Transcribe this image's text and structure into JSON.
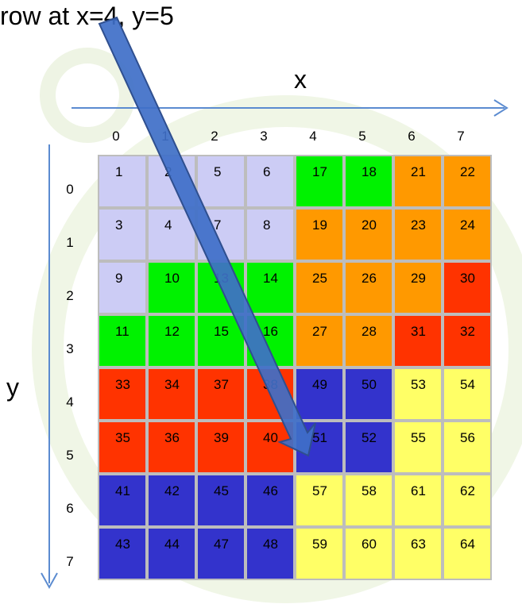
{
  "caption": "row at x=4, y=5",
  "x_axis_name": "x",
  "y_axis_name": "y",
  "x_ticks": [
    "0",
    "1",
    "2",
    "3",
    "4",
    "5",
    "6",
    "7"
  ],
  "y_ticks": [
    "0",
    "1",
    "2",
    "3",
    "4",
    "5",
    "6",
    "7"
  ],
  "colors": {
    "lavender": "#ccccf5",
    "green": "#00f200",
    "orange": "#ff9900",
    "red": "#ff3300",
    "blue": "#3333cc",
    "yellow": "#ffff66",
    "axis": "#5b8bd0",
    "arrow": "#3f6fc8",
    "arrow_edge": "#2f4f8f"
  },
  "grid": [
    [
      {
        "v": "1",
        "c": "lavender"
      },
      {
        "v": "2",
        "c": "lavender"
      },
      {
        "v": "5",
        "c": "lavender"
      },
      {
        "v": "6",
        "c": "lavender"
      },
      {
        "v": "17",
        "c": "green"
      },
      {
        "v": "18",
        "c": "green"
      },
      {
        "v": "21",
        "c": "orange"
      },
      {
        "v": "22",
        "c": "orange"
      }
    ],
    [
      {
        "v": "3",
        "c": "lavender"
      },
      {
        "v": "4",
        "c": "lavender"
      },
      {
        "v": "7",
        "c": "lavender"
      },
      {
        "v": "8",
        "c": "lavender"
      },
      {
        "v": "19",
        "c": "orange"
      },
      {
        "v": "20",
        "c": "orange"
      },
      {
        "v": "23",
        "c": "orange"
      },
      {
        "v": "24",
        "c": "orange"
      }
    ],
    [
      {
        "v": "9",
        "c": "lavender"
      },
      {
        "v": "10",
        "c": "green"
      },
      {
        "v": "13",
        "c": "green"
      },
      {
        "v": "14",
        "c": "green"
      },
      {
        "v": "25",
        "c": "orange"
      },
      {
        "v": "26",
        "c": "orange"
      },
      {
        "v": "29",
        "c": "orange"
      },
      {
        "v": "30",
        "c": "red"
      }
    ],
    [
      {
        "v": "11",
        "c": "green"
      },
      {
        "v": "12",
        "c": "green"
      },
      {
        "v": "15",
        "c": "green"
      },
      {
        "v": "16",
        "c": "green"
      },
      {
        "v": "27",
        "c": "orange"
      },
      {
        "v": "28",
        "c": "orange"
      },
      {
        "v": "31",
        "c": "red"
      },
      {
        "v": "32",
        "c": "red"
      }
    ],
    [
      {
        "v": "33",
        "c": "red"
      },
      {
        "v": "34",
        "c": "red"
      },
      {
        "v": "37",
        "c": "red"
      },
      {
        "v": "38",
        "c": "red"
      },
      {
        "v": "49",
        "c": "blue"
      },
      {
        "v": "50",
        "c": "blue"
      },
      {
        "v": "53",
        "c": "yellow"
      },
      {
        "v": "54",
        "c": "yellow"
      }
    ],
    [
      {
        "v": "35",
        "c": "red"
      },
      {
        "v": "36",
        "c": "red"
      },
      {
        "v": "39",
        "c": "red"
      },
      {
        "v": "40",
        "c": "red"
      },
      {
        "v": "51",
        "c": "blue"
      },
      {
        "v": "52",
        "c": "blue"
      },
      {
        "v": "55",
        "c": "yellow"
      },
      {
        "v": "56",
        "c": "yellow"
      }
    ],
    [
      {
        "v": "41",
        "c": "blue"
      },
      {
        "v": "42",
        "c": "blue"
      },
      {
        "v": "45",
        "c": "blue"
      },
      {
        "v": "46",
        "c": "blue"
      },
      {
        "v": "57",
        "c": "yellow"
      },
      {
        "v": "58",
        "c": "yellow"
      },
      {
        "v": "61",
        "c": "yellow"
      },
      {
        "v": "62",
        "c": "yellow"
      }
    ],
    [
      {
        "v": "43",
        "c": "blue"
      },
      {
        "v": "44",
        "c": "blue"
      },
      {
        "v": "47",
        "c": "blue"
      },
      {
        "v": "48",
        "c": "blue"
      },
      {
        "v": "59",
        "c": "yellow"
      },
      {
        "v": "60",
        "c": "yellow"
      },
      {
        "v": "63",
        "c": "yellow"
      },
      {
        "v": "64",
        "c": "yellow"
      }
    ]
  ]
}
